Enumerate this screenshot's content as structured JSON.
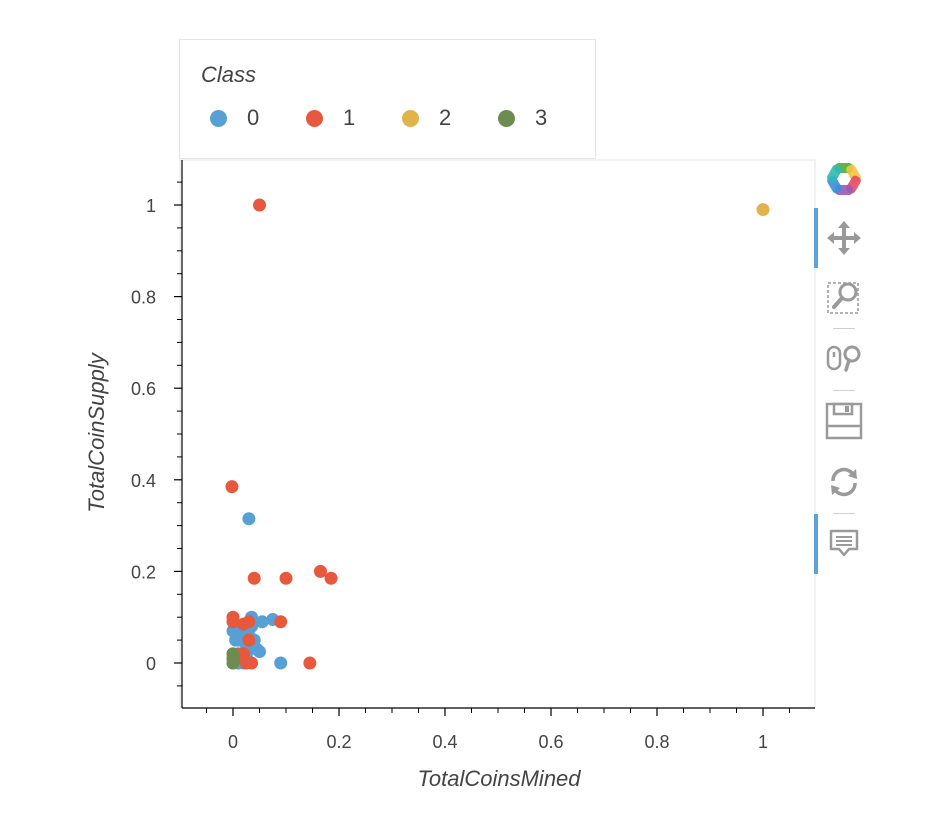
{
  "chart_data": {
    "type": "scatter",
    "xlabel": "TotalCoinsMined",
    "ylabel": "TotalCoinSupply",
    "xlim": [
      -0.1,
      1.1
    ],
    "ylim": [
      -0.1,
      1.1
    ],
    "xticks": [
      0,
      0.2,
      0.4,
      0.6,
      0.8,
      1
    ],
    "yticks": [
      0,
      0.2,
      0.4,
      0.6,
      0.8,
      1
    ],
    "xtick_labels": [
      "0",
      "0.2",
      "0.4",
      "0.6",
      "0.8",
      "1"
    ],
    "ytick_labels": [
      "0",
      "0.2",
      "0.4",
      "0.6",
      "0.8",
      "1"
    ],
    "grid": false,
    "legend_title": "Class",
    "legend_position": "top",
    "series": [
      {
        "name": "0",
        "color": "#56a0d6",
        "points": [
          [
            0.0,
            0.07
          ],
          [
            0.005,
            0.05
          ],
          [
            0.01,
            0.05
          ],
          [
            0.015,
            0.06
          ],
          [
            0.02,
            0.08
          ],
          [
            0.025,
            0.04
          ],
          [
            0.03,
            0.06
          ],
          [
            0.035,
            0.1
          ],
          [
            0.04,
            0.05
          ],
          [
            0.045,
            0.03
          ],
          [
            0.05,
            0.025
          ],
          [
            0.055,
            0.09
          ],
          [
            0.075,
            0.095
          ],
          [
            0.03,
            0.315
          ],
          [
            0.09,
            0.0
          ],
          [
            0.0,
            0.0
          ],
          [
            0.01,
            0.0
          ],
          [
            0.02,
            0.0
          ],
          [
            0.005,
            0.01
          ],
          [
            0.015,
            0.02
          ],
          [
            0.025,
            0.015
          ],
          [
            0.03,
            0.03
          ],
          [
            0.035,
            0.08
          ],
          [
            0.04,
            0.09
          ]
        ]
      },
      {
        "name": "1",
        "color": "#e8583d",
        "points": [
          [
            0.05,
            1.0
          ],
          [
            -0.002,
            0.385
          ],
          [
            0.04,
            0.185
          ],
          [
            0.1,
            0.185
          ],
          [
            0.165,
            0.2
          ],
          [
            0.185,
            0.185
          ],
          [
            0.0,
            0.1
          ],
          [
            0.0,
            0.09
          ],
          [
            0.02,
            0.085
          ],
          [
            0.03,
            0.09
          ],
          [
            0.09,
            0.09
          ],
          [
            0.03,
            0.05
          ],
          [
            0.0,
            0.02
          ],
          [
            0.02,
            0.02
          ],
          [
            0.025,
            0.0
          ],
          [
            0.035,
            0.0
          ],
          [
            0.145,
            0.0
          ],
          [
            0.01,
            0.02
          ],
          [
            0.0,
            0.01
          ]
        ]
      },
      {
        "name": "2",
        "color": "#e2b24b",
        "points": [
          [
            1.0,
            0.99
          ]
        ]
      },
      {
        "name": "3",
        "color": "#6e8c4f",
        "points": [
          [
            0.0,
            0.0
          ],
          [
            0.0,
            0.01
          ],
          [
            0.0,
            0.02
          ],
          [
            0.002,
            0.005
          ]
        ]
      }
    ]
  },
  "toolbar": {
    "logo_icon": "bokeh-logo-icon",
    "tools": [
      "pan-icon",
      "box-zoom-icon",
      "wheel-zoom-icon",
      "save-icon",
      "reset-icon",
      "hover-icon"
    ],
    "active_tools": [
      "pan-icon",
      "hover-icon"
    ],
    "accent_color": "#5aa4d9"
  }
}
